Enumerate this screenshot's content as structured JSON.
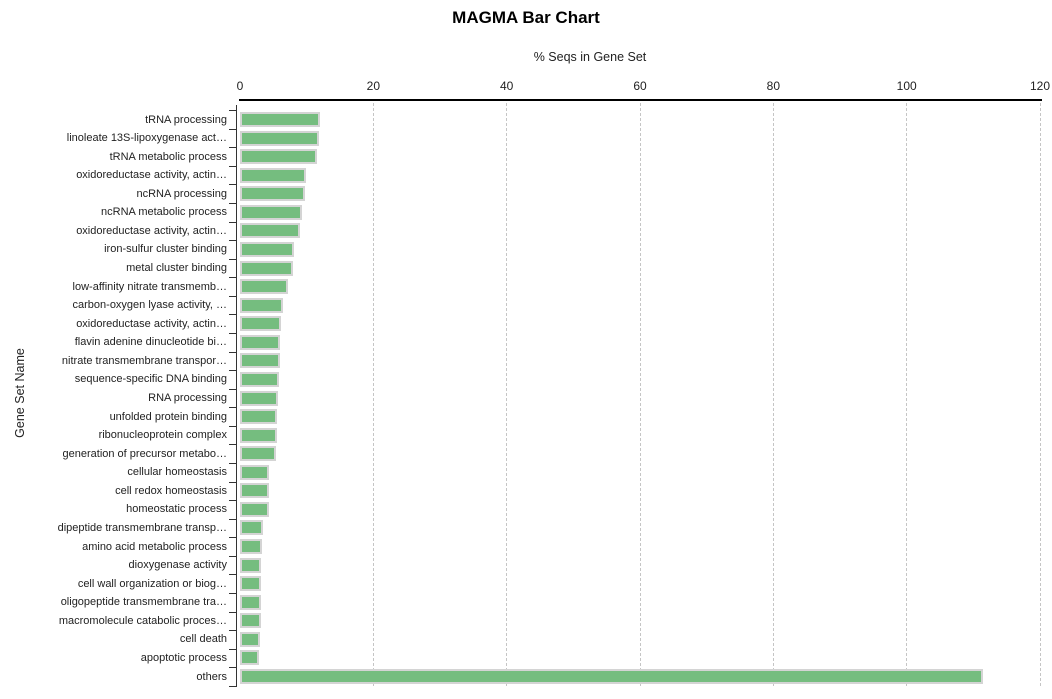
{
  "chart_data": {
    "type": "bar",
    "orientation": "horizontal",
    "title": "MAGMA Bar Chart",
    "xlabel": "% Seqs in Gene Set",
    "ylabel": "Gene Set Name",
    "xlim": [
      0,
      120
    ],
    "xticks": [
      "0",
      "20",
      "40",
      "60",
      "80",
      "100",
      "120"
    ],
    "xtick_values": [
      0,
      20,
      40,
      60,
      80,
      100,
      120
    ],
    "grid": "vertical-dashed",
    "legend_position": "none",
    "categories": [
      "tRNA processing",
      "linoleate 13S-lipoxygenase act…",
      "tRNA metabolic process",
      "oxidoreductase activity, actin…",
      "ncRNA processing",
      "ncRNA metabolic process",
      "oxidoreductase activity, actin…",
      "iron-sulfur cluster binding",
      "metal cluster binding",
      "low-affinity nitrate transmemb…",
      "carbon-oxygen lyase activity, …",
      "oxidoreductase activity, actin…",
      "flavin adenine dinucleotide bi…",
      "nitrate transmembrane transpor…",
      "sequence-specific DNA binding",
      "RNA processing",
      "unfolded protein binding",
      "ribonucleoprotein complex",
      "generation of precursor metabo…",
      "cellular homeostasis",
      "cell redox homeostasis",
      "homeostatic process",
      "dipeptide transmembrane transp…",
      "amino acid metabolic process",
      "dioxygenase activity",
      "cell wall organization or biog…",
      "oligopeptide transmembrane tra…",
      "macromolecule catabolic proces…",
      "cell death",
      "apoptotic process",
      "others"
    ],
    "values": [
      12.0,
      11.9,
      11.5,
      9.9,
      9.7,
      9.3,
      9.0,
      8.1,
      8.0,
      7.2,
      6.4,
      6.1,
      6.0,
      6.0,
      5.9,
      5.7,
      5.6,
      5.5,
      5.4,
      4.4,
      4.4,
      4.3,
      3.5,
      3.3,
      3.2,
      3.2,
      3.1,
      3.1,
      3.0,
      2.9,
      111.4
    ],
    "colors": {
      "bar_fill": "#75bd7f",
      "bar_border": "#d4d4d4",
      "gridline": "#c5c5c5",
      "axis_line": "#000000",
      "text": "#222222"
    }
  }
}
